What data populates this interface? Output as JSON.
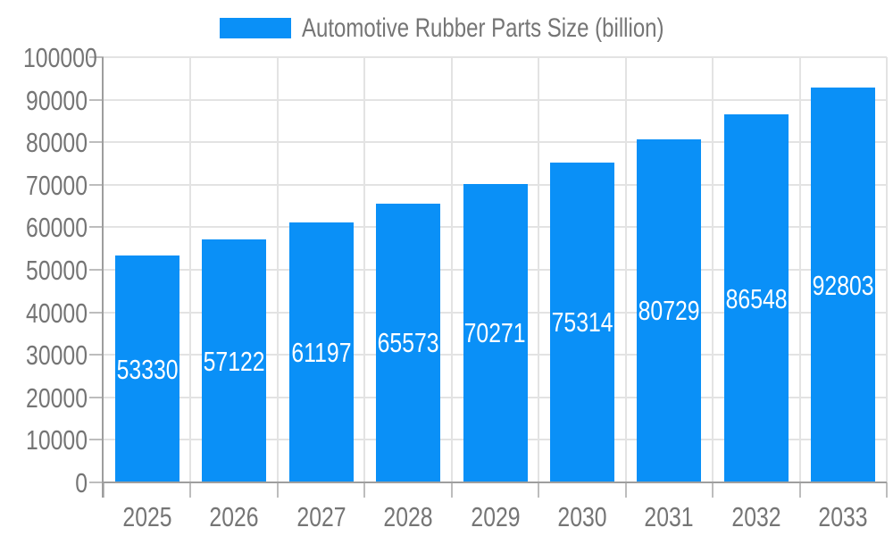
{
  "chart_data": {
    "type": "bar",
    "title": "Automotive Rubber Parts Size (billion)",
    "legend_position": "top",
    "categories": [
      "2025",
      "2026",
      "2027",
      "2028",
      "2029",
      "2030",
      "2031",
      "2032",
      "2033"
    ],
    "series": [
      {
        "name": "Automotive Rubber Parts Size (billion)",
        "color": "#0a90f7",
        "values": [
          53330,
          57122,
          61197,
          65573,
          70271,
          75314,
          80729,
          86548,
          92803
        ]
      }
    ],
    "xlabel": "",
    "ylabel": "",
    "ylim": [
      0,
      100000
    ],
    "y_ticks": [
      0,
      10000,
      20000,
      30000,
      40000,
      50000,
      60000,
      70000,
      80000,
      90000,
      100000
    ],
    "grid": true,
    "value_labels": {
      "position": "inside-center",
      "color": "#ffffff"
    }
  },
  "colors": {
    "bar": "#0a90f7",
    "axis_text": "#757575",
    "value_text": "#ffffff",
    "gridline": "#e3e3e3",
    "axis_line": "#9e9e9e",
    "tick": "#bdbdbd",
    "background": "#ffffff"
  }
}
